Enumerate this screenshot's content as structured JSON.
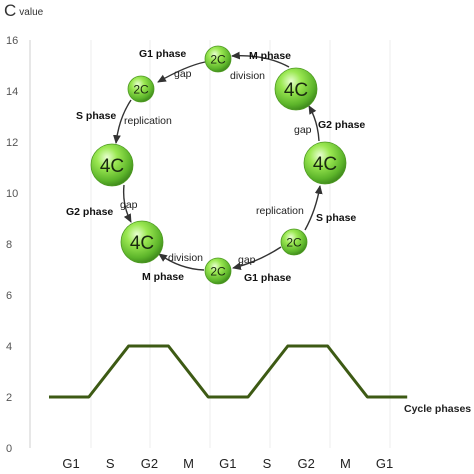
{
  "chart_data": {
    "type": "line",
    "ylabel_main": "C",
    "ylabel_sub": "value",
    "xlabel": "Cycle phases",
    "ylim": [
      0,
      16
    ],
    "yticks": [
      0,
      2,
      4,
      6,
      8,
      10,
      12,
      14,
      16
    ],
    "grid": "vertical",
    "categories": [
      "G1",
      "S",
      "G2",
      "M",
      "G1",
      "S",
      "G2",
      "M",
      "G1"
    ],
    "series": [
      {
        "color": "#3d5a14",
        "points": [
          {
            "x": 0.0,
            "y": 2
          },
          {
            "x": 1.0,
            "y": 2
          },
          {
            "x": 2.0,
            "y": 4
          },
          {
            "x": 3.0,
            "y": 4
          },
          {
            "x": 4.0,
            "y": 2
          },
          {
            "x": 5.0,
            "y": 2
          },
          {
            "x": 6.0,
            "y": 4
          },
          {
            "x": 7.0,
            "y": 4
          },
          {
            "x": 8.0,
            "y": 2
          },
          {
            "x": 9.0,
            "y": 2
          }
        ]
      }
    ],
    "cycle_diagram": {
      "cells": [
        {
          "label": "2C",
          "size": "small"
        },
        {
          "label": "4C",
          "size": "large"
        },
        {
          "label": "4C",
          "size": "large"
        },
        {
          "label": "2C",
          "size": "small"
        },
        {
          "label": "2C",
          "size": "small"
        },
        {
          "label": "4C",
          "size": "large"
        },
        {
          "label": "4C",
          "size": "large"
        },
        {
          "label": "2C",
          "size": "small"
        }
      ],
      "labels": {
        "g1_top": "G1 phase",
        "gap_top_left": "gap",
        "m_top": "M phase",
        "division_top": "division",
        "s_left": "S phase",
        "replication_left": "replication",
        "g2_left": "G2 phase",
        "gap_left": "gap",
        "division_bottom": "division",
        "m_bottom": "M phase",
        "gap_bottom": "gap",
        "g1_bottom": "G1 phase",
        "replication_right": "replication",
        "s_right": "S phase",
        "gap_right": "gap",
        "g2_right": "G2 phase"
      },
      "cell_color": "#7fd63a",
      "arrow_color": "#333333"
    }
  }
}
